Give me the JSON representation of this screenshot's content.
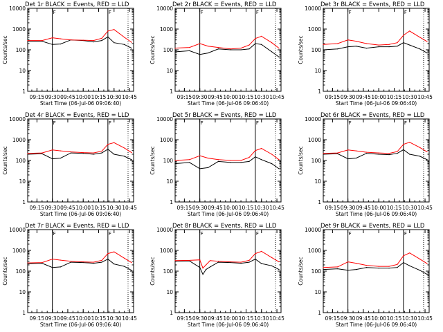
{
  "chart_data": [
    {
      "type": "line",
      "title": "Det 1r BLACK = Events, RED = LLD",
      "xlabel": "Start Time (06-Jul-06 09:06:40)",
      "ylabel": "Counts/sec",
      "yscale": "log",
      "ylim": [
        1,
        10000
      ],
      "x_ticks": [
        "09:15",
        "09:30",
        "09:45",
        "10:00",
        "10:15",
        "10:30",
        "10:45"
      ],
      "y_ticks": [
        "1",
        "10",
        "100",
        "1000",
        "10000"
      ],
      "markers": [
        "09:30",
        "10:24"
      ],
      "marker_labels": [
        "F",
        "F"
      ],
      "x": [
        "09:06",
        "09:20",
        "09:30",
        "09:38",
        "09:48",
        "10:00",
        "10:10",
        "10:18",
        "10:24",
        "10:30",
        "10:40",
        "10:47"
      ],
      "series": [
        {
          "color": "#000000",
          "values": [
            260,
            260,
            180,
            190,
            300,
            280,
            240,
            280,
            420,
            220,
            180,
            120
          ]
        },
        {
          "color": "#ff0000",
          "values": [
            280,
            280,
            380,
            340,
            300,
            290,
            280,
            360,
            800,
            950,
            400,
            230
          ]
        }
      ]
    },
    {
      "type": "line",
      "title": "Det 2r BLACK = Events, RED = LLD",
      "xlabel": "Start Time (06-Jul-06 09:06:40)",
      "ylabel": "Counts/sec",
      "yscale": "log",
      "ylim": [
        1,
        10000
      ],
      "x_ticks": [
        "09:15",
        "09:30",
        "09:45",
        "10:00",
        "10:15",
        "10:30",
        "10:45"
      ],
      "y_ticks": [
        "1",
        "10",
        "100",
        "1000",
        "10000"
      ],
      "markers": [
        "09:30",
        "10:24"
      ],
      "marker_labels": [
        "F",
        "F"
      ],
      "x": [
        "09:06",
        "09:20",
        "09:30",
        "09:38",
        "09:48",
        "10:00",
        "10:10",
        "10:18",
        "10:24",
        "10:30",
        "10:40",
        "10:47"
      ],
      "series": [
        {
          "color": "#000000",
          "values": [
            80,
            90,
            60,
            70,
            110,
            100,
            100,
            110,
            200,
            180,
            80,
            45
          ]
        },
        {
          "color": "#ff0000",
          "values": [
            120,
            130,
            200,
            150,
            130,
            110,
            120,
            170,
            350,
            450,
            220,
            120
          ]
        }
      ]
    },
    {
      "type": "line",
      "title": "Det 3r BLACK = Events, RED = LLD",
      "xlabel": "Start Time (06-Jul-06 09:06:40)",
      "ylabel": "Counts/sec",
      "yscale": "log",
      "ylim": [
        1,
        10000
      ],
      "x_ticks": [
        "09:15",
        "09:30",
        "09:45",
        "10:00",
        "10:15",
        "10:30",
        "10:45"
      ],
      "y_ticks": [
        "1",
        "10",
        "100",
        "1000",
        "10000"
      ],
      "markers": [
        "09:30",
        "10:24"
      ],
      "marker_labels": [
        "F",
        "F"
      ],
      "x": [
        "09:06",
        "09:20",
        "09:30",
        "09:38",
        "09:48",
        "10:00",
        "10:10",
        "10:18",
        "10:24",
        "10:30",
        "10:40",
        "10:47"
      ],
      "series": [
        {
          "color": "#000000",
          "values": [
            100,
            110,
            140,
            150,
            120,
            140,
            140,
            150,
            220,
            170,
            110,
            70
          ]
        },
        {
          "color": "#ff0000",
          "values": [
            180,
            200,
            300,
            260,
            200,
            170,
            180,
            220,
            500,
            800,
            400,
            250
          ]
        }
      ]
    },
    {
      "type": "line",
      "title": "Det 4r BLACK = Events, RED = LLD",
      "xlabel": "Start Time (06-Jul-06 09:06:40)",
      "ylabel": "Counts/sec",
      "yscale": "log",
      "ylim": [
        1,
        10000
      ],
      "x_ticks": [
        "09:15",
        "09:30",
        "09:45",
        "10:00",
        "10:15",
        "10:30",
        "10:45"
      ],
      "y_ticks": [
        "1",
        "10",
        "100",
        "1000",
        "10000"
      ],
      "markers": [
        "09:30",
        "10:24"
      ],
      "marker_labels": [
        "F",
        "F"
      ],
      "x": [
        "09:06",
        "09:20",
        "09:30",
        "09:38",
        "09:48",
        "10:00",
        "10:10",
        "10:18",
        "10:24",
        "10:30",
        "10:40",
        "10:47"
      ],
      "series": [
        {
          "color": "#000000",
          "values": [
            200,
            210,
            120,
            130,
            230,
            220,
            200,
            230,
            350,
            200,
            160,
            110
          ]
        },
        {
          "color": "#ff0000",
          "values": [
            220,
            230,
            320,
            290,
            260,
            240,
            230,
            280,
            600,
            720,
            400,
            240
          ]
        }
      ]
    },
    {
      "type": "line",
      "title": "Det 5r BLACK = Events, RED = LLD",
      "xlabel": "Start Time (06-Jul-06 09:06:40)",
      "ylabel": "Counts/sec",
      "yscale": "log",
      "ylim": [
        1,
        10000
      ],
      "x_ticks": [
        "09:15",
        "09:30",
        "09:45",
        "10:00",
        "10:15",
        "10:30",
        "10:45"
      ],
      "y_ticks": [
        "1",
        "10",
        "100",
        "1000",
        "10000"
      ],
      "markers": [
        "09:30",
        "10:24"
      ],
      "marker_labels": [
        "F",
        "F"
      ],
      "x": [
        "09:06",
        "09:20",
        "09:30",
        "09:38",
        "09:48",
        "10:00",
        "10:10",
        "10:18",
        "10:24",
        "10:30",
        "10:40",
        "10:47"
      ],
      "series": [
        {
          "color": "#000000",
          "values": [
            70,
            80,
            40,
            45,
            90,
            80,
            80,
            90,
            150,
            110,
            70,
            40
          ]
        },
        {
          "color": "#ff0000",
          "values": [
            100,
            110,
            170,
            130,
            110,
            100,
            100,
            140,
            300,
            380,
            200,
            110
          ]
        }
      ]
    },
    {
      "type": "line",
      "title": "Det 6r BLACK = Events, RED = LLD",
      "xlabel": "Start Time (06-Jul-06 09:06:40)",
      "ylabel": "Counts/sec",
      "yscale": "log",
      "ylim": [
        1,
        10000
      ],
      "x_ticks": [
        "09:15",
        "09:30",
        "09:45",
        "10:00",
        "10:15",
        "10:30",
        "10:45"
      ],
      "y_ticks": [
        "1",
        "10",
        "100",
        "1000",
        "10000"
      ],
      "markers": [
        "09:30",
        "10:24"
      ],
      "marker_labels": [
        "F",
        "F"
      ],
      "x": [
        "09:06",
        "09:20",
        "09:30",
        "09:38",
        "09:48",
        "10:00",
        "10:10",
        "10:18",
        "10:24",
        "10:30",
        "10:40",
        "10:47"
      ],
      "series": [
        {
          "color": "#000000",
          "values": [
            200,
            210,
            120,
            130,
            220,
            200,
            190,
            220,
            330,
            200,
            160,
            110
          ]
        },
        {
          "color": "#ff0000",
          "values": [
            220,
            230,
            320,
            290,
            250,
            230,
            220,
            270,
            600,
            750,
            420,
            260
          ]
        }
      ]
    },
    {
      "type": "line",
      "title": "Det 7r BLACK = Events, RED = LLD",
      "xlabel": "Start Time (06-Jul-06 09:06:40)",
      "ylabel": "Counts/sec",
      "yscale": "log",
      "ylim": [
        1,
        10000
      ],
      "x_ticks": [
        "09:15",
        "09:30",
        "09:45",
        "10:00",
        "10:15",
        "10:30",
        "10:45"
      ],
      "y_ticks": [
        "1",
        "10",
        "100",
        "1000",
        "10000"
      ],
      "markers": [
        "09:30",
        "10:24"
      ],
      "marker_labels": [
        "F",
        "F"
      ],
      "x": [
        "09:06",
        "09:20",
        "09:30",
        "09:38",
        "09:48",
        "10:00",
        "10:10",
        "10:18",
        "10:24",
        "10:30",
        "10:40",
        "10:47"
      ],
      "series": [
        {
          "color": "#000000",
          "values": [
            230,
            240,
            150,
            160,
            270,
            260,
            240,
            270,
            380,
            220,
            170,
            110
          ]
        },
        {
          "color": "#ff0000",
          "values": [
            250,
            260,
            380,
            340,
            300,
            280,
            270,
            330,
            700,
            850,
            420,
            260
          ]
        }
      ]
    },
    {
      "type": "line",
      "title": "Det 8r BLACK = Events, RED = LLD",
      "xlabel": "Start Time (06-Jul-06 09:06:40)",
      "ylabel": "Counts/sec",
      "yscale": "log",
      "ylim": [
        1,
        10000
      ],
      "x_ticks": [
        "09:15",
        "09:30",
        "09:45",
        "10:00",
        "10:15",
        "10:30",
        "10:45"
      ],
      "y_ticks": [
        "1",
        "10",
        "100",
        "1000",
        "10000"
      ],
      "markers": [
        "09:30",
        "10:24"
      ],
      "marker_labels": [
        "F",
        "F"
      ],
      "x": [
        "09:06",
        "09:20",
        "09:30",
        "09:33",
        "09:36",
        "09:40",
        "09:48",
        "10:00",
        "10:10",
        "10:18",
        "10:24",
        "10:30",
        "10:40",
        "10:47"
      ],
      "series": [
        {
          "color": "#000000",
          "values": [
            300,
            310,
            150,
            70,
            120,
            160,
            270,
            260,
            240,
            270,
            380,
            230,
            180,
            120
          ]
        },
        {
          "color": "#ff0000",
          "values": [
            320,
            330,
            350,
            140,
            200,
            320,
            300,
            280,
            270,
            330,
            700,
            900,
            450,
            280
          ]
        }
      ]
    },
    {
      "type": "line",
      "title": "Det 9r BLACK = Events, RED = LLD",
      "xlabel": "Start Time (06-Jul-06 09:06:40)",
      "ylabel": "Counts/sec",
      "yscale": "log",
      "ylim": [
        1,
        10000
      ],
      "x_ticks": [
        "09:15",
        "09:30",
        "09:45",
        "10:00",
        "10:15",
        "10:30",
        "10:45"
      ],
      "y_ticks": [
        "1",
        "10",
        "100",
        "1000",
        "10000"
      ],
      "markers": [
        "09:30",
        "10:24"
      ],
      "marker_labels": [
        "F",
        "F"
      ],
      "x": [
        "09:06",
        "09:20",
        "09:30",
        "09:38",
        "09:48",
        "10:00",
        "10:10",
        "10:18",
        "10:24",
        "10:30",
        "10:40",
        "10:47"
      ],
      "series": [
        {
          "color": "#000000",
          "values": [
            120,
            130,
            110,
            120,
            150,
            140,
            140,
            150,
            260,
            180,
            110,
            70
          ]
        },
        {
          "color": "#ff0000",
          "values": [
            150,
            160,
            280,
            240,
            190,
            170,
            170,
            210,
            550,
            750,
            380,
            230
          ]
        }
      ]
    }
  ]
}
